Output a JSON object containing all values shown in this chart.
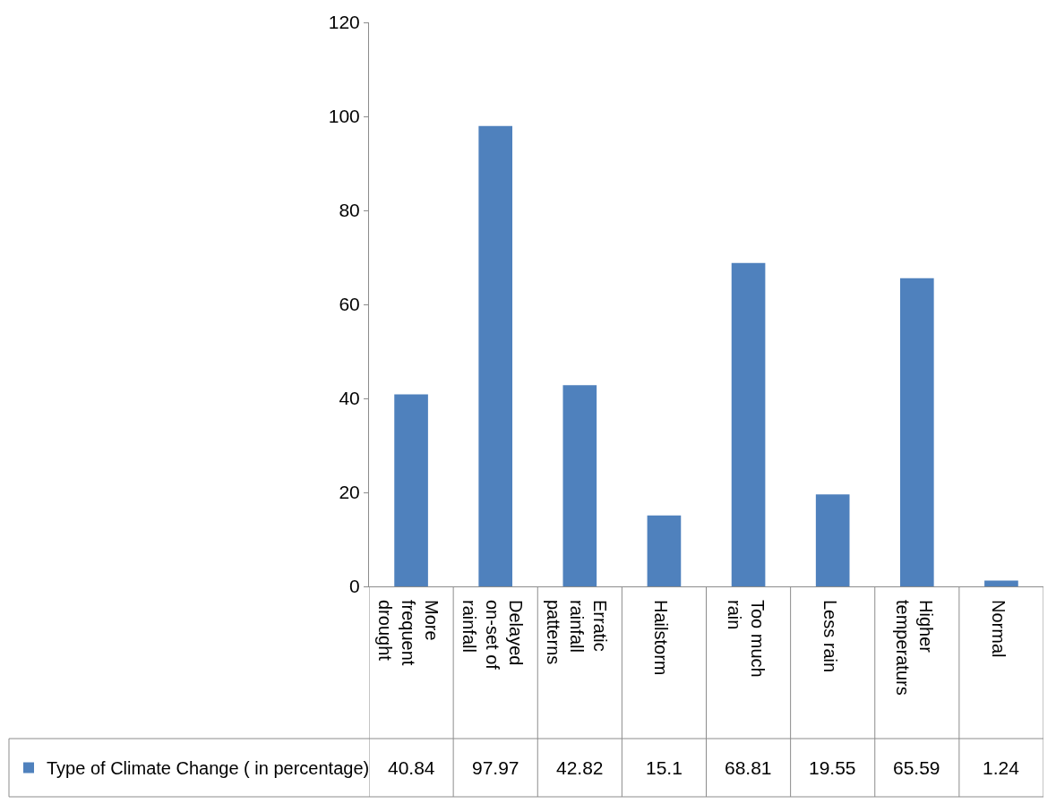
{
  "chart_data": {
    "type": "bar",
    "categories": [
      "More frequent drought",
      "Delayed on-set of rainfall",
      "Erratic rainfall patterns",
      "Hailstorm",
      "Too much rain",
      "Less rain",
      "Higher temperaturs",
      "Normal"
    ],
    "series": [
      {
        "name": "Type of Climate Change ( in percentage)",
        "color": "#4f81bd",
        "values": [
          40.84,
          97.97,
          42.82,
          15.1,
          68.81,
          19.55,
          65.59,
          1.24
        ]
      }
    ],
    "ylim": [
      0,
      120
    ],
    "yticks": [
      0,
      20,
      40,
      60,
      80,
      100,
      120
    ],
    "grid": false,
    "legend": "bottom left",
    "data_labels": true
  }
}
